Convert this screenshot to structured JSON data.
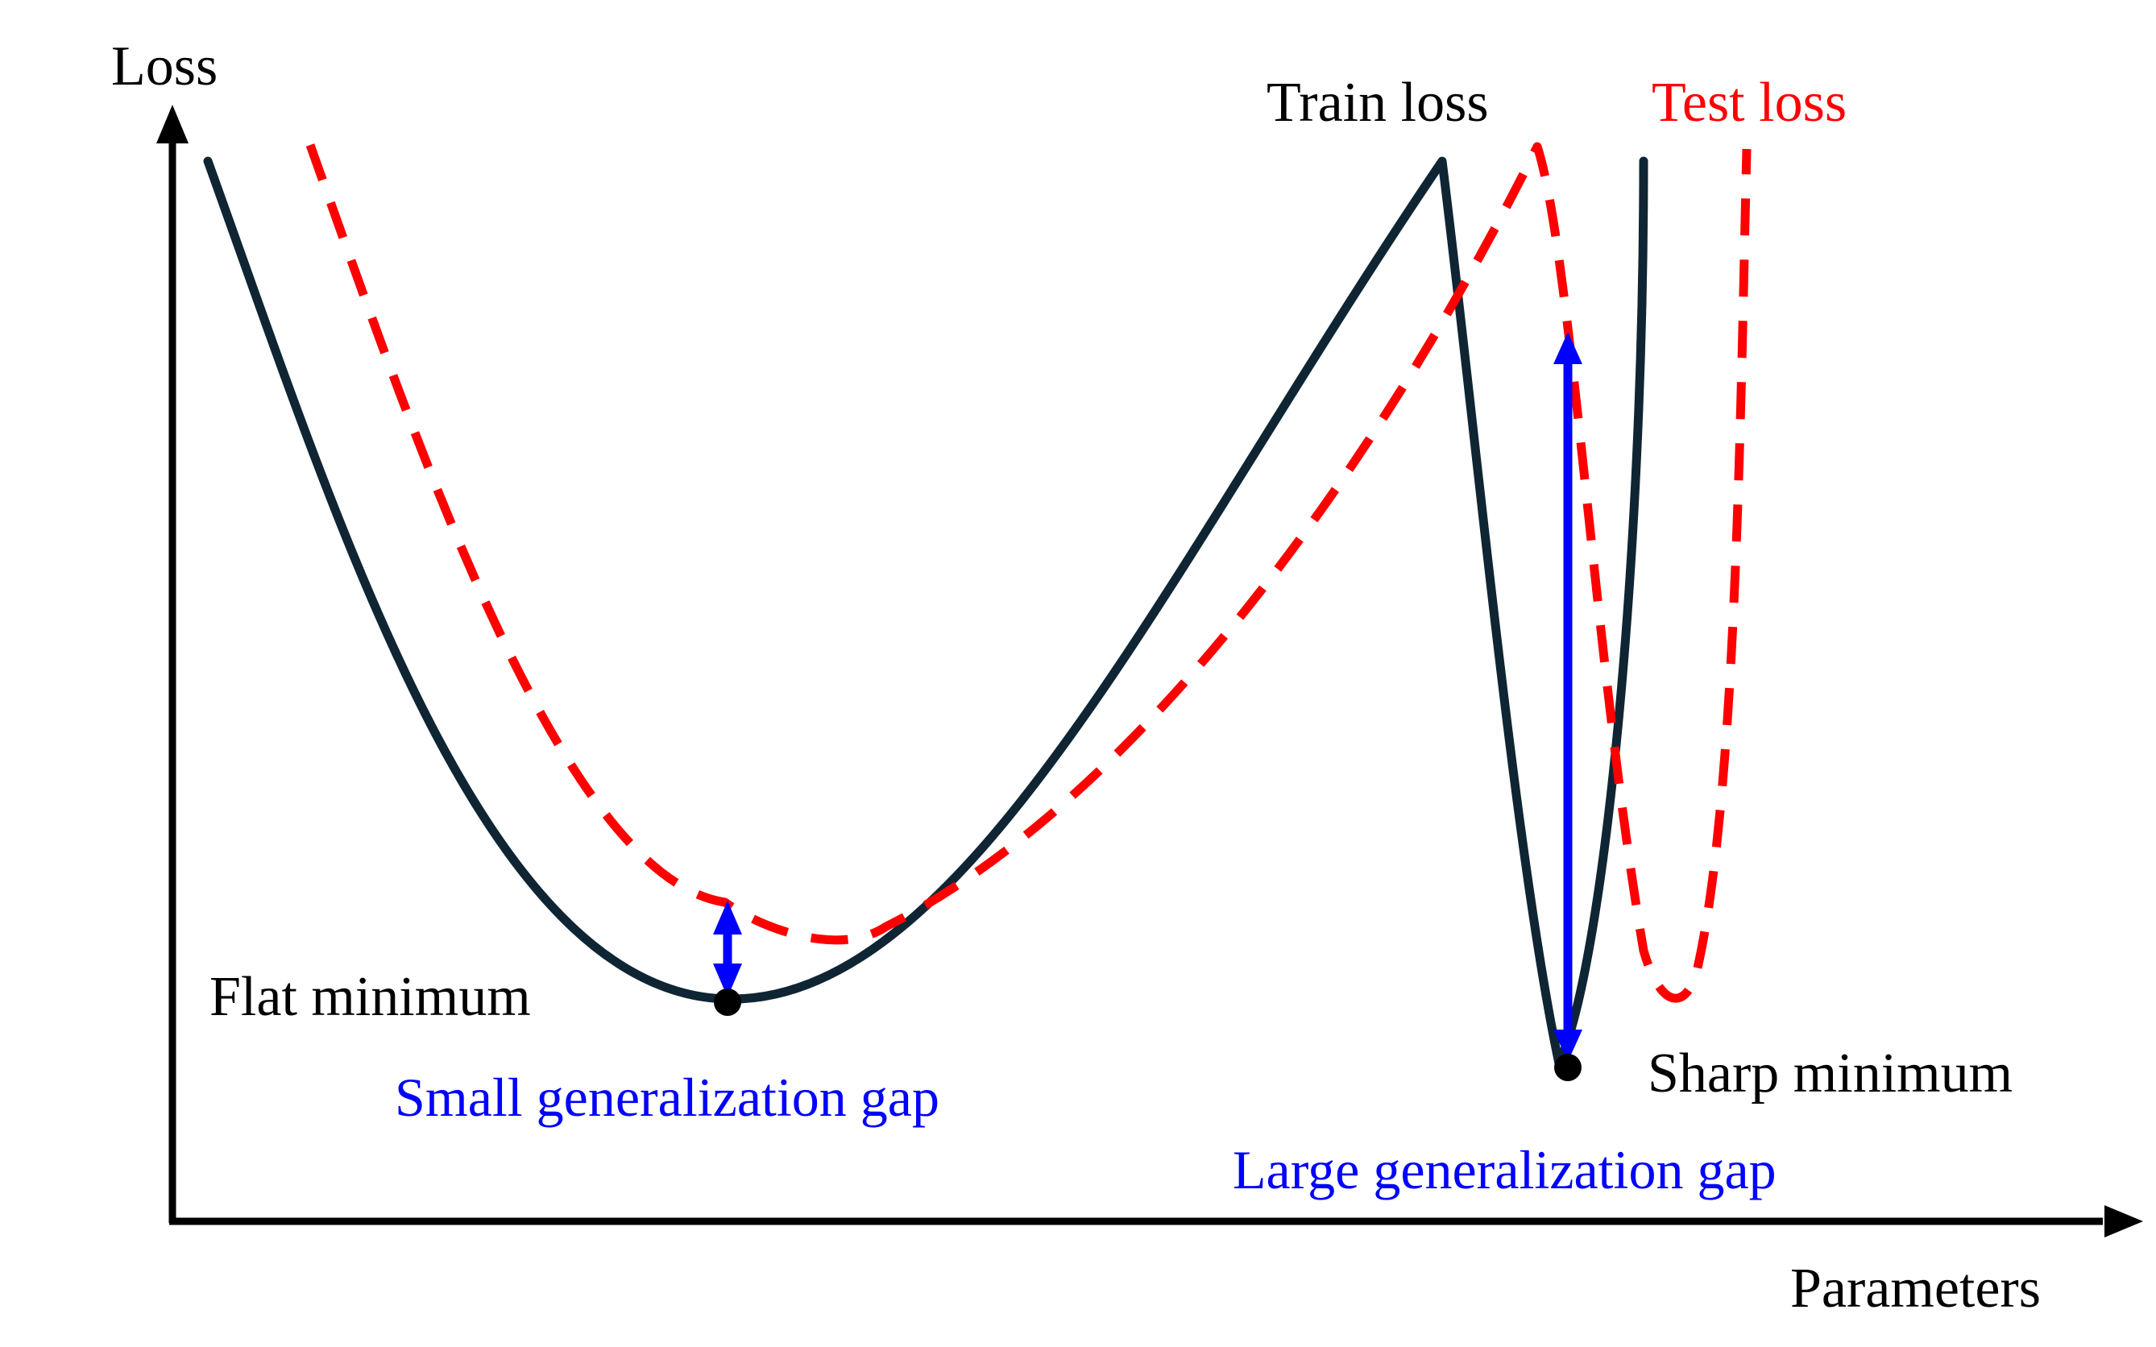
{
  "axes": {
    "y_label": "Loss",
    "x_label": "Parameters"
  },
  "legend": {
    "train": "Train loss",
    "test": "Test loss"
  },
  "annotations": {
    "flat": "Flat minimum",
    "sharp": "Sharp minimum",
    "small_gap": "Small generalization gap",
    "large_gap": "Large generalization gap"
  },
  "colors": {
    "train_curve": "#0f2533",
    "test_curve": "#ff0000",
    "gap_arrow": "#0000ff",
    "axis": "#000000",
    "text": "#000000",
    "test_label": "#ff0000",
    "gap_label": "#0000ff"
  }
}
